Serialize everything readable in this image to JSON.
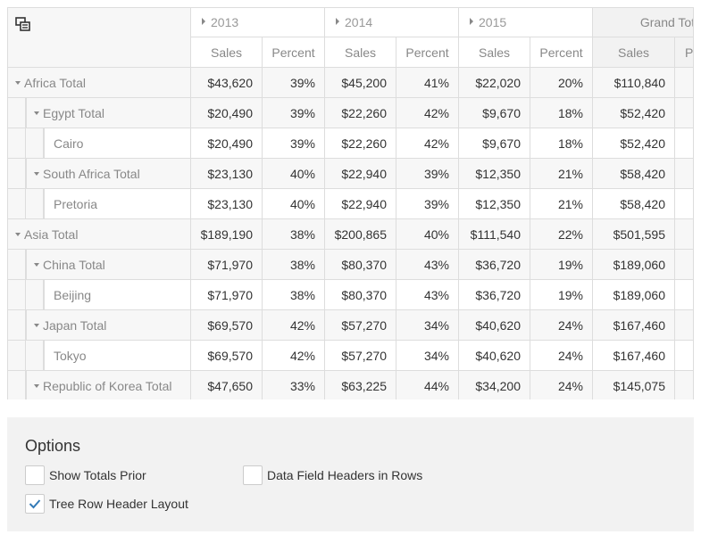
{
  "columns": {
    "years": [
      {
        "label": "2013"
      },
      {
        "label": "2014"
      },
      {
        "label": "2015"
      }
    ],
    "grand_total_label": "Grand Total",
    "sub_labels": {
      "sales": "Sales",
      "percent": "Percent"
    }
  },
  "rows": [
    {
      "label": "Africa Total",
      "level": 0,
      "expandable": true,
      "values": [
        "$43,620",
        "39%",
        "$45,200",
        "41%",
        "$22,020",
        "20%",
        "$110,840"
      ]
    },
    {
      "label": "Egypt Total",
      "level": 1,
      "expandable": true,
      "values": [
        "$20,490",
        "39%",
        "$22,260",
        "42%",
        "$9,670",
        "18%",
        "$52,420"
      ]
    },
    {
      "label": "Cairo",
      "level": 2,
      "expandable": false,
      "values": [
        "$20,490",
        "39%",
        "$22,260",
        "42%",
        "$9,670",
        "18%",
        "$52,420"
      ]
    },
    {
      "label": "South Africa Total",
      "level": 1,
      "expandable": true,
      "values": [
        "$23,130",
        "40%",
        "$22,940",
        "39%",
        "$12,350",
        "21%",
        "$58,420"
      ]
    },
    {
      "label": "Pretoria",
      "level": 2,
      "expandable": false,
      "values": [
        "$23,130",
        "40%",
        "$22,940",
        "39%",
        "$12,350",
        "21%",
        "$58,420"
      ]
    },
    {
      "label": "Asia Total",
      "level": 0,
      "expandable": true,
      "values": [
        "$189,190",
        "38%",
        "$200,865",
        "40%",
        "$111,540",
        "22%",
        "$501,595"
      ]
    },
    {
      "label": "China Total",
      "level": 1,
      "expandable": true,
      "values": [
        "$71,970",
        "38%",
        "$80,370",
        "43%",
        "$36,720",
        "19%",
        "$189,060"
      ]
    },
    {
      "label": "Beijing",
      "level": 2,
      "expandable": false,
      "values": [
        "$71,970",
        "38%",
        "$80,370",
        "43%",
        "$36,720",
        "19%",
        "$189,060"
      ]
    },
    {
      "label": "Japan Total",
      "level": 1,
      "expandable": true,
      "values": [
        "$69,570",
        "42%",
        "$57,270",
        "34%",
        "$40,620",
        "24%",
        "$167,460"
      ]
    },
    {
      "label": "Tokyo",
      "level": 2,
      "expandable": false,
      "values": [
        "$69,570",
        "42%",
        "$57,270",
        "34%",
        "$40,620",
        "24%",
        "$167,460"
      ]
    },
    {
      "label": "Republic of Korea Total",
      "level": 1,
      "expandable": true,
      "values": [
        "$47,650",
        "33%",
        "$63,225",
        "44%",
        "$34,200",
        "24%",
        "$145,075"
      ]
    }
  ],
  "options": {
    "title": "Options",
    "show_totals_prior": {
      "label": "Show Totals Prior",
      "checked": false
    },
    "data_field_headers_in_rows": {
      "label": "Data Field Headers in Rows",
      "checked": false
    },
    "tree_row_header_layout": {
      "label": "Tree Row Header Layout",
      "checked": true
    }
  },
  "colors": {
    "check": "#337ab7",
    "header_bg": "#f7f7f7",
    "grand_bg": "#f2f2f2",
    "border": "#dddddd"
  }
}
